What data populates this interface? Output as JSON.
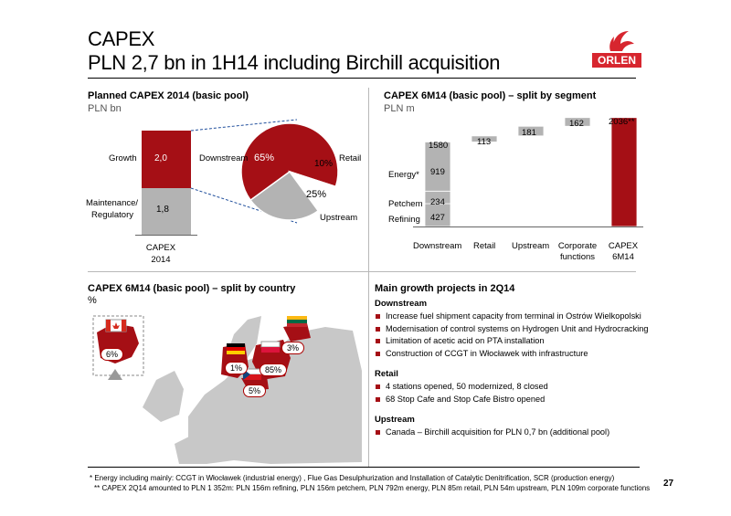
{
  "header": {
    "title_line1": "CAPEX",
    "title_line2": "PLN 2,7 bn in 1H14 including Birchill acquisition",
    "logo_text": "ORLEN"
  },
  "planned": {
    "title": "Planned CAPEX 2014 (basic pool)",
    "unit": "PLN bn",
    "growth_label": "Growth",
    "growth_value": "2,0",
    "maint_label_1": "Maintenance/",
    "maint_label_2": "Regulatory",
    "maint_value": "1,8",
    "x_label_1": "CAPEX",
    "x_label_2": "2014",
    "pie_downstream_label": "Downstream",
    "pie_downstream_value": "65%",
    "pie_retail_label": "Retail",
    "pie_retail_value": "10%",
    "pie_upstream_label": "Upstream",
    "pie_upstream_value": "25%"
  },
  "segment": {
    "title": "CAPEX 6M14 (basic pool) – split by segment",
    "unit": "PLN m",
    "total_downstream": "1580",
    "energy_label": "Energy*",
    "energy_value": "919",
    "petchem_label": "Petchem",
    "petchem_value": "234",
    "refining_label": "Refining",
    "refining_value": "427",
    "retail_value": "113",
    "upstream_value": "181",
    "corporate_value": "162",
    "total_value": "2036**",
    "cat_downstream": "Downstream",
    "cat_retail": "Retail",
    "cat_upstream": "Upstream",
    "cat_corporate_1": "Corporate",
    "cat_corporate_2": "functions",
    "cat_capex_1": "CAPEX",
    "cat_capex_2": "6M14"
  },
  "country": {
    "title": "CAPEX 6M14 (basic pool) – split by country",
    "unit": "%",
    "canada": "6%",
    "lithuania": "3%",
    "germany": "1%",
    "poland": "85%",
    "czech": "5%"
  },
  "projects": {
    "title": "Main growth projects in 2Q14",
    "downstream_heading": "Downstream",
    "downstream_items": [
      "Increase fuel shipment capacity from terminal in Ostrów Wielkopolski",
      "Modernisation of control systems on Hydrogen Unit and Hydrocracking",
      "Limitation of acetic acid on PTA installation",
      "Construction of CCGT in Włocławek with infrastructure"
    ],
    "retail_heading": "Retail",
    "retail_items": [
      "4 stations opened, 50 modernized, 8 closed",
      "68 Stop Cafe and Stop Cafe Bistro opened"
    ],
    "upstream_heading": "Upstream",
    "upstream_items": [
      "Canada – Birchill acquisition for PLN 0,7 bn (additional pool)"
    ]
  },
  "footnotes": {
    "note1": "* Energy including mainly: CCGT in Włocławek (industrial energy) , Flue Gas Desulphurization and Installation of Catalytic Denitrification, SCR (production energy)",
    "note2": "** CAPEX 2Q14 amounted to PLN 1 352m: PLN 156m refining, PLN 156m petchem, PLN 792m energy, PLN 85m retail, PLN 54m upstream, PLN 109m corporate functions"
  },
  "page_number": "27",
  "colors": {
    "brand_red": "#a50f15",
    "grey": "#b3b3b3"
  }
}
